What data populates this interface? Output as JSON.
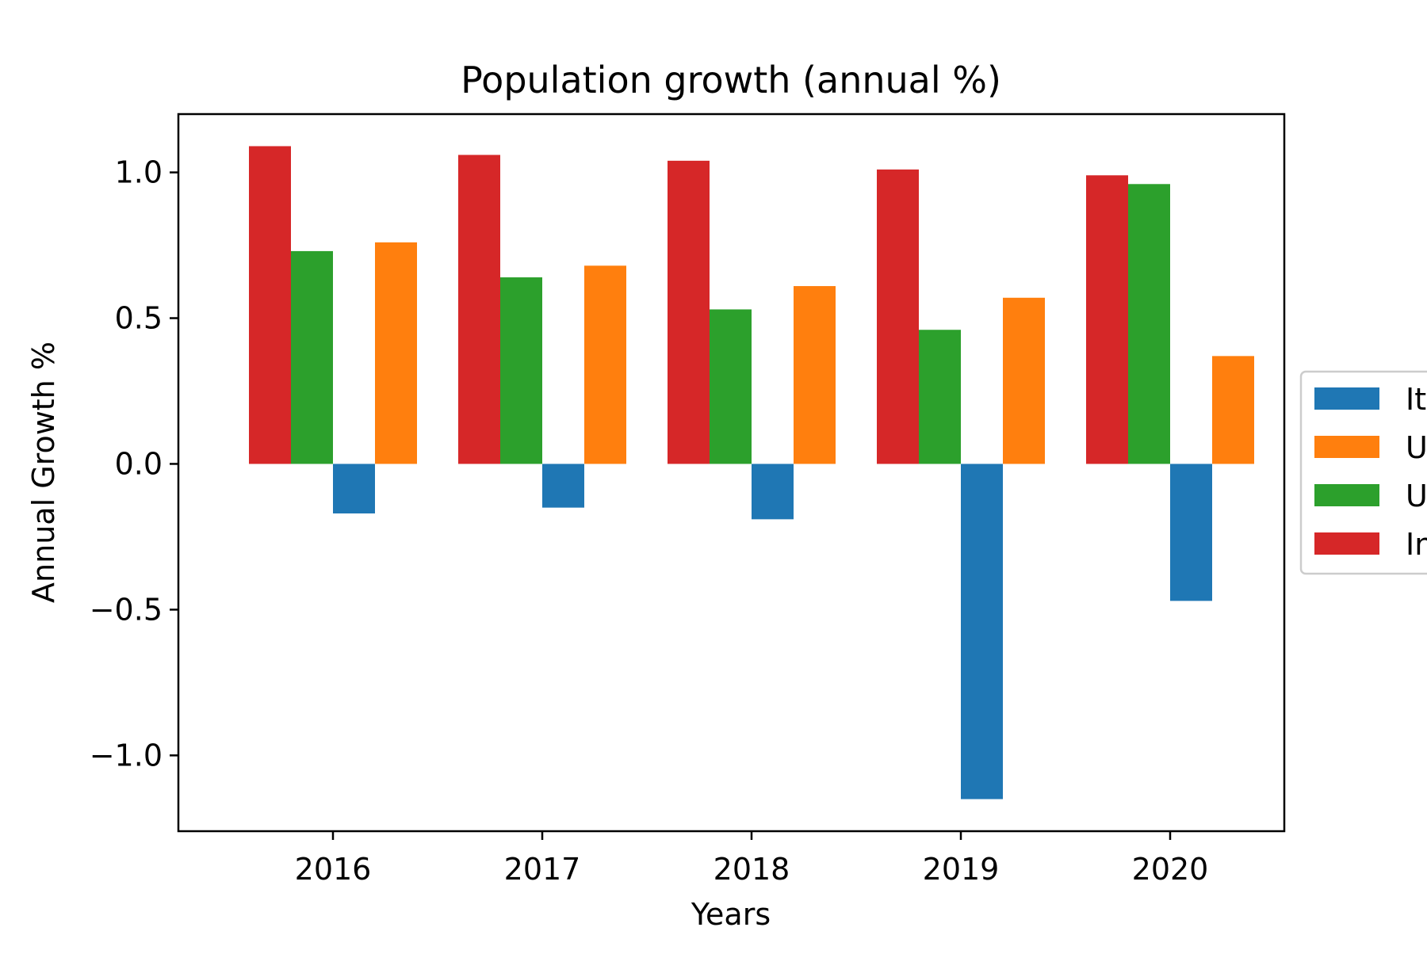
{
  "chart_data": {
    "type": "bar",
    "title": "Population growth (annual %)",
    "xlabel": "Years",
    "ylabel": "Annual Growth %",
    "categories": [
      "2016",
      "2017",
      "2018",
      "2019",
      "2020"
    ],
    "ylim": [
      -1.26,
      1.2
    ],
    "yticks": [
      -1.0,
      -0.5,
      0.0,
      0.5,
      1.0
    ],
    "ytick_labels": [
      "−1.0",
      "−0.5",
      "0.0",
      "0.5",
      "1.0"
    ],
    "grid": false,
    "legend_position": "center-right outside (clipped)",
    "series": [
      {
        "name": "It",
        "color": "#1f77b4",
        "values": [
          -0.17,
          -0.15,
          -0.19,
          -1.15,
          -0.47
        ]
      },
      {
        "name": "U",
        "color": "#ff7f0e",
        "values": [
          0.76,
          0.68,
          0.61,
          0.57,
          0.37
        ]
      },
      {
        "name": "U",
        "color": "#2ca02c",
        "values": [
          0.73,
          0.64,
          0.53,
          0.46,
          0.96
        ]
      },
      {
        "name": "In",
        "color": "#d62728",
        "values": [
          1.09,
          1.06,
          1.04,
          1.01,
          0.99
        ]
      }
    ],
    "draw_order": [
      3,
      2,
      0,
      1
    ]
  }
}
